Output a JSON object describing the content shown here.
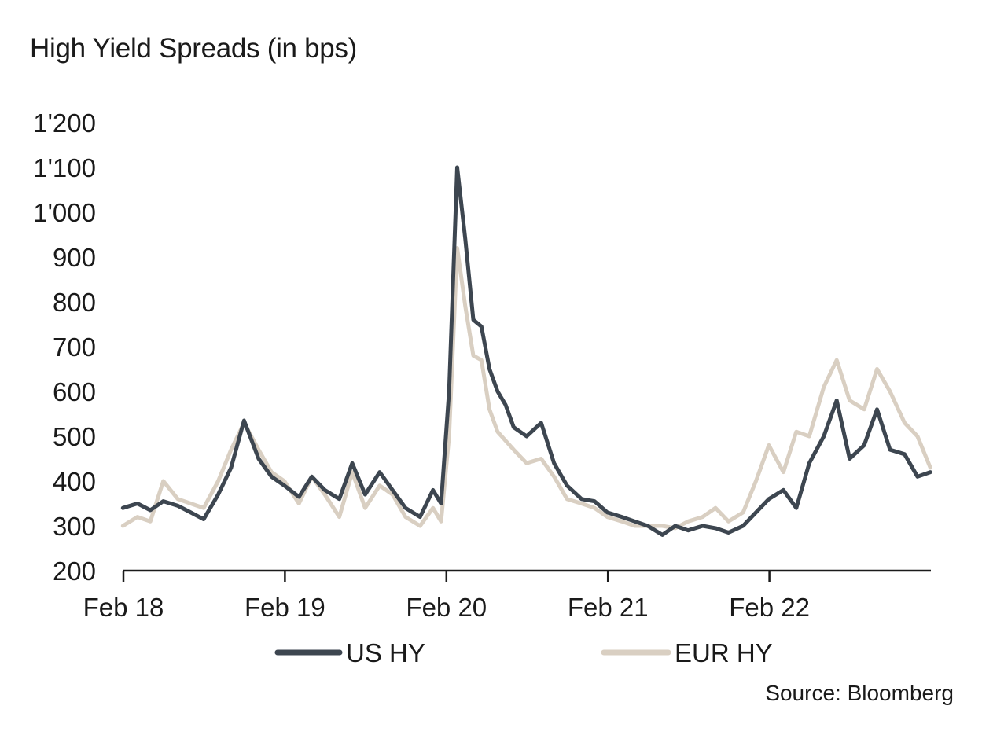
{
  "chart_data": {
    "type": "line",
    "title": "High Yield Spreads (in bps)",
    "xlabel": "",
    "ylabel": "",
    "x_tick_labels": [
      "Feb 18",
      "Feb 19",
      "Feb 20",
      "Feb 21",
      "Feb 22"
    ],
    "x_tick_dates": [
      2018.0833,
      2019.0833,
      2020.0833,
      2021.0833,
      2022.0833
    ],
    "y_tick_labels": [
      "200",
      "300",
      "400",
      "500",
      "600",
      "700",
      "800",
      "900",
      "1'000",
      "1'100",
      "1'200"
    ],
    "y_tick_values": [
      200,
      300,
      400,
      500,
      600,
      700,
      800,
      900,
      1000,
      1100,
      1200
    ],
    "xlim": [
      2018.0833,
      2023.0833
    ],
    "ylim": [
      200,
      1200
    ],
    "grid": false,
    "legend_position": "bottom-center",
    "series": [
      {
        "name": "US HY",
        "color": "#3d4650",
        "points": [
          [
            2018.08,
            340
          ],
          [
            2018.17,
            350
          ],
          [
            2018.25,
            335
          ],
          [
            2018.33,
            355
          ],
          [
            2018.42,
            345
          ],
          [
            2018.5,
            330
          ],
          [
            2018.58,
            315
          ],
          [
            2018.67,
            370
          ],
          [
            2018.75,
            430
          ],
          [
            2018.83,
            535
          ],
          [
            2018.92,
            450
          ],
          [
            2019.0,
            410
          ],
          [
            2019.08,
            390
          ],
          [
            2019.17,
            365
          ],
          [
            2019.25,
            410
          ],
          [
            2019.33,
            380
          ],
          [
            2019.42,
            360
          ],
          [
            2019.5,
            440
          ],
          [
            2019.58,
            370
          ],
          [
            2019.67,
            420
          ],
          [
            2019.75,
            380
          ],
          [
            2019.83,
            340
          ],
          [
            2019.92,
            320
          ],
          [
            2020.0,
            380
          ],
          [
            2020.05,
            350
          ],
          [
            2020.1,
            600
          ],
          [
            2020.15,
            1100
          ],
          [
            2020.2,
            940
          ],
          [
            2020.25,
            760
          ],
          [
            2020.3,
            745
          ],
          [
            2020.35,
            650
          ],
          [
            2020.4,
            600
          ],
          [
            2020.45,
            570
          ],
          [
            2020.5,
            520
          ],
          [
            2020.58,
            500
          ],
          [
            2020.67,
            530
          ],
          [
            2020.75,
            440
          ],
          [
            2020.83,
            390
          ],
          [
            2020.92,
            360
          ],
          [
            2021.0,
            355
          ],
          [
            2021.08,
            330
          ],
          [
            2021.17,
            320
          ],
          [
            2021.25,
            310
          ],
          [
            2021.33,
            300
          ],
          [
            2021.42,
            280
          ],
          [
            2021.5,
            300
          ],
          [
            2021.58,
            290
          ],
          [
            2021.67,
            300
          ],
          [
            2021.75,
            295
          ],
          [
            2021.83,
            285
          ],
          [
            2021.92,
            300
          ],
          [
            2022.0,
            330
          ],
          [
            2022.08,
            360
          ],
          [
            2022.17,
            380
          ],
          [
            2022.25,
            340
          ],
          [
            2022.33,
            440
          ],
          [
            2022.42,
            500
          ],
          [
            2022.5,
            580
          ],
          [
            2022.58,
            450
          ],
          [
            2022.67,
            480
          ],
          [
            2022.75,
            560
          ],
          [
            2022.83,
            470
          ],
          [
            2022.92,
            460
          ],
          [
            2023.0,
            410
          ],
          [
            2023.08,
            420
          ]
        ]
      },
      {
        "name": "EUR HY",
        "color": "#d9cfc2",
        "points": [
          [
            2018.08,
            300
          ],
          [
            2018.17,
            320
          ],
          [
            2018.25,
            310
          ],
          [
            2018.33,
            400
          ],
          [
            2018.42,
            360
          ],
          [
            2018.5,
            350
          ],
          [
            2018.58,
            340
          ],
          [
            2018.67,
            400
          ],
          [
            2018.75,
            470
          ],
          [
            2018.83,
            530
          ],
          [
            2018.92,
            470
          ],
          [
            2019.0,
            420
          ],
          [
            2019.08,
            400
          ],
          [
            2019.17,
            350
          ],
          [
            2019.25,
            410
          ],
          [
            2019.33,
            370
          ],
          [
            2019.42,
            320
          ],
          [
            2019.5,
            420
          ],
          [
            2019.58,
            340
          ],
          [
            2019.67,
            390
          ],
          [
            2019.75,
            370
          ],
          [
            2019.83,
            320
          ],
          [
            2019.92,
            300
          ],
          [
            2020.0,
            340
          ],
          [
            2020.05,
            310
          ],
          [
            2020.1,
            500
          ],
          [
            2020.15,
            920
          ],
          [
            2020.2,
            790
          ],
          [
            2020.25,
            680
          ],
          [
            2020.3,
            670
          ],
          [
            2020.35,
            560
          ],
          [
            2020.4,
            510
          ],
          [
            2020.45,
            490
          ],
          [
            2020.5,
            470
          ],
          [
            2020.58,
            440
          ],
          [
            2020.67,
            450
          ],
          [
            2020.75,
            410
          ],
          [
            2020.83,
            360
          ],
          [
            2020.92,
            350
          ],
          [
            2021.0,
            340
          ],
          [
            2021.08,
            320
          ],
          [
            2021.17,
            310
          ],
          [
            2021.25,
            300
          ],
          [
            2021.33,
            300
          ],
          [
            2021.42,
            300
          ],
          [
            2021.5,
            295
          ],
          [
            2021.58,
            310
          ],
          [
            2021.67,
            320
          ],
          [
            2021.75,
            340
          ],
          [
            2021.83,
            310
          ],
          [
            2021.92,
            330
          ],
          [
            2022.0,
            400
          ],
          [
            2022.08,
            480
          ],
          [
            2022.17,
            420
          ],
          [
            2022.25,
            510
          ],
          [
            2022.33,
            500
          ],
          [
            2022.42,
            610
          ],
          [
            2022.5,
            670
          ],
          [
            2022.58,
            580
          ],
          [
            2022.67,
            560
          ],
          [
            2022.75,
            650
          ],
          [
            2022.83,
            600
          ],
          [
            2022.92,
            530
          ],
          [
            2023.0,
            500
          ],
          [
            2023.08,
            430
          ]
        ]
      }
    ]
  },
  "source_note": "Source: Bloomberg"
}
